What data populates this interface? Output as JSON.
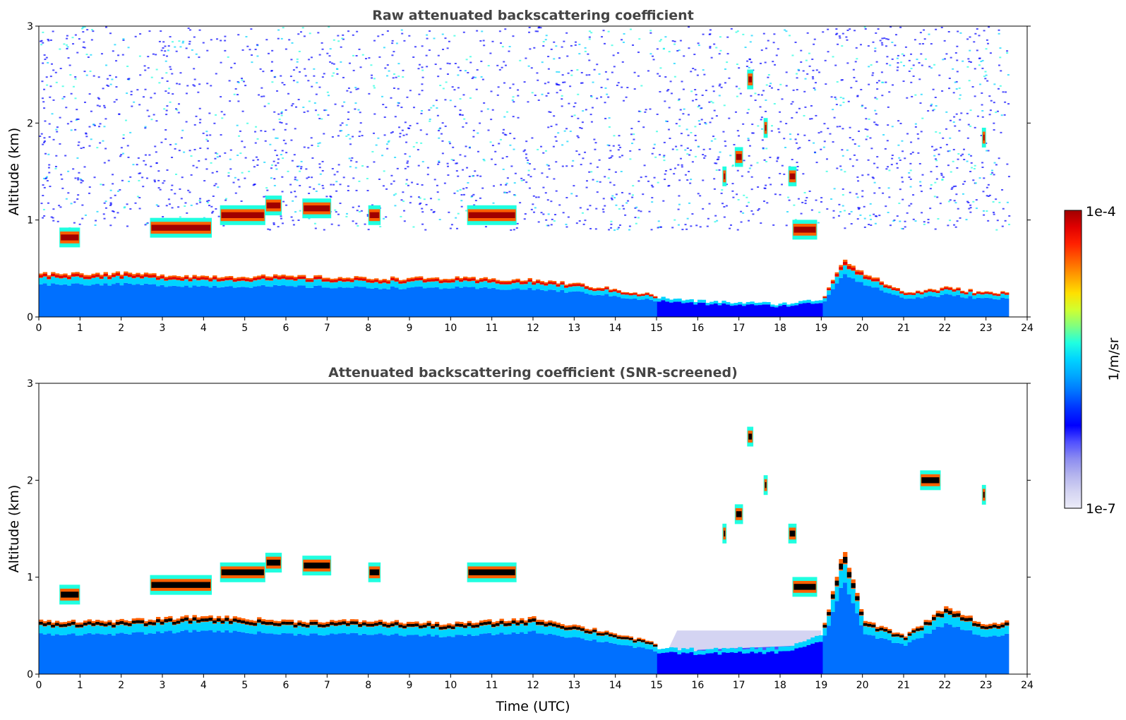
{
  "chart_data": [
    {
      "type": "heatmap",
      "title": "Raw attenuated backscattering coefficient",
      "xlabel": "",
      "ylabel": "Altitude (km)",
      "xlim": [
        0,
        24
      ],
      "ylim": [
        0,
        3
      ],
      "x_ticks": [
        "0",
        "1",
        "2",
        "3",
        "4",
        "5",
        "6",
        "7",
        "8",
        "9",
        "10",
        "11",
        "12",
        "13",
        "14",
        "15",
        "16",
        "17",
        "18",
        "19",
        "20",
        "21",
        "22",
        "23",
        "24"
      ],
      "y_ticks": [
        "0",
        "1",
        "2",
        "3"
      ],
      "data_end_time": 23.55,
      "boundary_layer_top_km": [
        [
          0,
          0.45
        ],
        [
          2,
          0.45
        ],
        [
          4,
          0.42
        ],
        [
          6,
          0.42
        ],
        [
          8,
          0.4
        ],
        [
          10,
          0.4
        ],
        [
          12,
          0.38
        ],
        [
          13,
          0.34
        ],
        [
          14,
          0.28
        ],
        [
          15,
          0.22
        ],
        [
          16,
          0.18
        ],
        [
          18,
          0.15
        ],
        [
          19,
          0.2
        ],
        [
          19.5,
          0.6
        ],
        [
          20,
          0.45
        ],
        [
          21,
          0.25
        ],
        [
          22,
          0.3
        ],
        [
          23,
          0.25
        ],
        [
          23.55,
          0.25
        ]
      ],
      "cloud_layers": [
        {
          "t0": 0.5,
          "t1": 1.0,
          "alt": 0.82
        },
        {
          "t0": 2.7,
          "t1": 4.2,
          "alt": 0.92
        },
        {
          "t0": 4.4,
          "t1": 5.5,
          "alt": 1.05
        },
        {
          "t0": 5.5,
          "t1": 5.9,
          "alt": 1.15
        },
        {
          "t0": 6.4,
          "t1": 7.1,
          "alt": 1.12
        },
        {
          "t0": 8.0,
          "t1": 8.3,
          "alt": 1.05
        },
        {
          "t0": 10.4,
          "t1": 11.6,
          "alt": 1.05
        },
        {
          "t0": 16.6,
          "t1": 16.7,
          "alt": 1.45
        },
        {
          "t0": 16.9,
          "t1": 17.1,
          "alt": 1.65
        },
        {
          "t0": 17.2,
          "t1": 17.35,
          "alt": 2.45
        },
        {
          "t0": 17.6,
          "t1": 17.7,
          "alt": 1.95
        },
        {
          "t0": 18.2,
          "t1": 18.4,
          "alt": 1.45
        },
        {
          "t0": 18.3,
          "t1": 18.9,
          "alt": 0.9
        },
        {
          "t0": 22.9,
          "t1": 23.0,
          "alt": 1.85
        }
      ]
    },
    {
      "type": "heatmap",
      "title": "Attenuated backscattering coefficient (SNR-screened)",
      "xlabel": "Time (UTC)",
      "ylabel": "Altitude (km)",
      "xlim": [
        0,
        24
      ],
      "ylim": [
        0,
        3
      ],
      "x_ticks": [
        "0",
        "1",
        "2",
        "3",
        "4",
        "5",
        "6",
        "7",
        "8",
        "9",
        "10",
        "11",
        "12",
        "13",
        "14",
        "15",
        "16",
        "17",
        "18",
        "19",
        "20",
        "21",
        "22",
        "23",
        "24"
      ],
      "y_ticks": [
        "0",
        "1",
        "2",
        "3"
      ],
      "data_end_time": 23.55,
      "boundary_layer_top_km": [
        [
          0,
          0.55
        ],
        [
          2,
          0.55
        ],
        [
          4,
          0.6
        ],
        [
          6,
          0.55
        ],
        [
          8,
          0.55
        ],
        [
          10,
          0.52
        ],
        [
          12,
          0.58
        ],
        [
          13,
          0.5
        ],
        [
          14,
          0.42
        ],
        [
          15,
          0.3
        ],
        [
          16,
          0.28
        ],
        [
          18,
          0.3
        ],
        [
          19,
          0.45
        ],
        [
          19.5,
          1.3
        ],
        [
          20,
          0.55
        ],
        [
          21,
          0.4
        ],
        [
          22,
          0.7
        ],
        [
          23,
          0.5
        ],
        [
          23.55,
          0.55
        ]
      ],
      "cloud_layers": [
        {
          "t0": 0.5,
          "t1": 1.0,
          "alt": 0.82
        },
        {
          "t0": 2.7,
          "t1": 4.2,
          "alt": 0.92
        },
        {
          "t0": 4.4,
          "t1": 5.5,
          "alt": 1.05
        },
        {
          "t0": 5.5,
          "t1": 5.9,
          "alt": 1.15
        },
        {
          "t0": 6.4,
          "t1": 7.1,
          "alt": 1.12
        },
        {
          "t0": 8.0,
          "t1": 8.3,
          "alt": 1.05
        },
        {
          "t0": 10.4,
          "t1": 11.6,
          "alt": 1.05
        },
        {
          "t0": 16.6,
          "t1": 16.7,
          "alt": 1.45
        },
        {
          "t0": 16.9,
          "t1": 17.1,
          "alt": 1.65
        },
        {
          "t0": 17.2,
          "t1": 17.35,
          "alt": 2.45
        },
        {
          "t0": 17.6,
          "t1": 17.7,
          "alt": 1.95
        },
        {
          "t0": 18.2,
          "t1": 18.4,
          "alt": 1.45
        },
        {
          "t0": 18.3,
          "t1": 18.9,
          "alt": 0.9
        },
        {
          "t0": 21.4,
          "t1": 21.9,
          "alt": 2.0
        },
        {
          "t0": 22.9,
          "t1": 23.0,
          "alt": 1.85
        }
      ]
    }
  ],
  "colorbar": {
    "label": "1/m/sr",
    "max_label": "1e-4",
    "min_label": "1e-7",
    "colors": [
      "#ececf8",
      "#d4d4f2",
      "#b4b4ee",
      "#8c8cf0",
      "#5050ff",
      "#0000ff",
      "#0030ff",
      "#0070ff",
      "#00a6ff",
      "#00d4ff",
      "#20ffe0",
      "#80ff80",
      "#d0ff30",
      "#ffe000",
      "#ffa000",
      "#ff6000",
      "#ff2000",
      "#e00000",
      "#a00000"
    ]
  }
}
